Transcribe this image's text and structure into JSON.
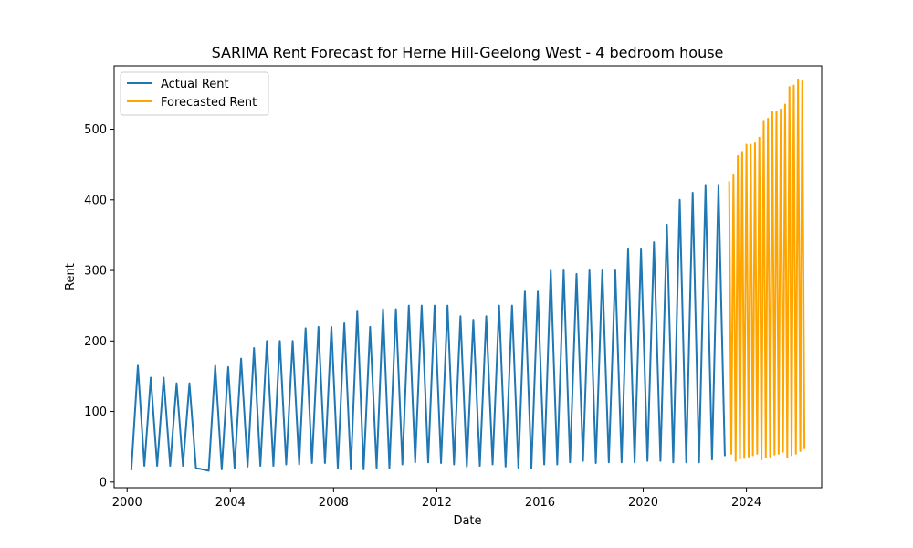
{
  "chart_data": {
    "type": "line",
    "title": "SARIMA Rent Forecast for Herne Hill-Geelong West - 4 bedroom house",
    "xlabel": "Date",
    "ylabel": "Rent",
    "x_axis_type": "date",
    "xlim": [
      "1999-07-01",
      "2026-12-01"
    ],
    "ylim": [
      -8,
      590
    ],
    "x_ticks": [
      {
        "date": "2000-01-01",
        "label": "2000"
      },
      {
        "date": "2004-01-01",
        "label": "2004"
      },
      {
        "date": "2008-01-01",
        "label": "2008"
      },
      {
        "date": "2012-01-01",
        "label": "2012"
      },
      {
        "date": "2016-01-01",
        "label": "2016"
      },
      {
        "date": "2020-01-01",
        "label": "2020"
      },
      {
        "date": "2024-01-01",
        "label": "2024"
      }
    ],
    "y_ticks": [
      0,
      100,
      200,
      300,
      400,
      500
    ],
    "grid": false,
    "legend": {
      "placement": "top-left"
    },
    "series": [
      {
        "name": "Actual Rent",
        "color": "#1f77b4",
        "points": [
          [
            "2000-03-01",
            18
          ],
          [
            "2000-06-01",
            165
          ],
          [
            "2000-09-01",
            23
          ],
          [
            "2000-12-01",
            148
          ],
          [
            "2001-03-01",
            23
          ],
          [
            "2001-06-01",
            148
          ],
          [
            "2001-09-01",
            23
          ],
          [
            "2001-12-01",
            140
          ],
          [
            "2002-03-01",
            23
          ],
          [
            "2002-06-01",
            140
          ],
          [
            "2002-09-01",
            20
          ],
          [
            "2003-03-01",
            16
          ],
          [
            "2003-06-01",
            165
          ],
          [
            "2003-09-01",
            18
          ],
          [
            "2003-12-01",
            163
          ],
          [
            "2004-03-01",
            20
          ],
          [
            "2004-06-01",
            175
          ],
          [
            "2004-09-01",
            22
          ],
          [
            "2004-12-01",
            190
          ],
          [
            "2005-03-01",
            23
          ],
          [
            "2005-06-01",
            200
          ],
          [
            "2005-09-01",
            23
          ],
          [
            "2005-12-01",
            200
          ],
          [
            "2006-03-01",
            25
          ],
          [
            "2006-06-01",
            200
          ],
          [
            "2006-09-01",
            25
          ],
          [
            "2006-12-01",
            218
          ],
          [
            "2007-03-01",
            27
          ],
          [
            "2007-06-01",
            220
          ],
          [
            "2007-09-01",
            27
          ],
          [
            "2007-12-01",
            220
          ],
          [
            "2008-03-01",
            20
          ],
          [
            "2008-06-01",
            225
          ],
          [
            "2008-09-01",
            18
          ],
          [
            "2008-12-01",
            243
          ],
          [
            "2009-03-01",
            18
          ],
          [
            "2009-06-01",
            220
          ],
          [
            "2009-09-01",
            20
          ],
          [
            "2009-12-01",
            245
          ],
          [
            "2010-03-01",
            20
          ],
          [
            "2010-06-01",
            245
          ],
          [
            "2010-09-01",
            25
          ],
          [
            "2010-12-01",
            250
          ],
          [
            "2011-03-01",
            28
          ],
          [
            "2011-06-01",
            250
          ],
          [
            "2011-09-01",
            28
          ],
          [
            "2011-12-01",
            250
          ],
          [
            "2012-03-01",
            27
          ],
          [
            "2012-06-01",
            250
          ],
          [
            "2012-09-01",
            25
          ],
          [
            "2012-12-01",
            235
          ],
          [
            "2013-03-01",
            22
          ],
          [
            "2013-06-01",
            230
          ],
          [
            "2013-09-01",
            23
          ],
          [
            "2013-12-01",
            235
          ],
          [
            "2014-03-01",
            25
          ],
          [
            "2014-06-01",
            250
          ],
          [
            "2014-09-01",
            22
          ],
          [
            "2014-12-01",
            250
          ],
          [
            "2015-03-01",
            20
          ],
          [
            "2015-06-01",
            270
          ],
          [
            "2015-09-01",
            20
          ],
          [
            "2015-12-01",
            270
          ],
          [
            "2016-03-01",
            25
          ],
          [
            "2016-06-01",
            300
          ],
          [
            "2016-09-01",
            25
          ],
          [
            "2016-12-01",
            300
          ],
          [
            "2017-03-01",
            28
          ],
          [
            "2017-06-01",
            295
          ],
          [
            "2017-09-01",
            30
          ],
          [
            "2017-12-01",
            300
          ],
          [
            "2018-03-01",
            27
          ],
          [
            "2018-06-01",
            300
          ],
          [
            "2018-09-01",
            28
          ],
          [
            "2018-12-01",
            300
          ],
          [
            "2019-03-01",
            28
          ],
          [
            "2019-06-01",
            330
          ],
          [
            "2019-09-01",
            28
          ],
          [
            "2019-12-01",
            330
          ],
          [
            "2020-03-01",
            30
          ],
          [
            "2020-06-01",
            340
          ],
          [
            "2020-09-01",
            30
          ],
          [
            "2020-12-01",
            365
          ],
          [
            "2021-03-01",
            28
          ],
          [
            "2021-06-01",
            400
          ],
          [
            "2021-09-01",
            28
          ],
          [
            "2021-12-01",
            410
          ],
          [
            "2022-03-01",
            28
          ],
          [
            "2022-06-01",
            420
          ],
          [
            "2022-09-01",
            32
          ],
          [
            "2022-12-01",
            420
          ],
          [
            "2023-03-01",
            38
          ]
        ]
      },
      {
        "name": "Forecasted Rent",
        "color": "#ffa500",
        "points": [
          [
            "2023-05-01",
            425
          ],
          [
            "2023-06-01",
            40
          ],
          [
            "2023-07-01",
            435
          ],
          [
            "2023-08-01",
            30
          ],
          [
            "2023-09-01",
            462
          ],
          [
            "2023-10-01",
            33
          ],
          [
            "2023-11-01",
            468
          ],
          [
            "2023-12-01",
            34
          ],
          [
            "2024-01-01",
            478
          ],
          [
            "2024-02-01",
            36
          ],
          [
            "2024-03-01",
            478
          ],
          [
            "2024-04-01",
            38
          ],
          [
            "2024-05-01",
            480
          ],
          [
            "2024-06-01",
            40
          ],
          [
            "2024-07-01",
            488
          ],
          [
            "2024-08-01",
            32
          ],
          [
            "2024-09-01",
            512
          ],
          [
            "2024-10-01",
            35
          ],
          [
            "2024-11-01",
            515
          ],
          [
            "2024-12-01",
            36
          ],
          [
            "2025-01-01",
            525
          ],
          [
            "2025-02-01",
            39
          ],
          [
            "2025-03-01",
            525
          ],
          [
            "2025-04-01",
            40
          ],
          [
            "2025-05-01",
            528
          ],
          [
            "2025-06-01",
            43
          ],
          [
            "2025-07-01",
            535
          ],
          [
            "2025-08-01",
            35
          ],
          [
            "2025-09-01",
            560
          ],
          [
            "2025-10-01",
            38
          ],
          [
            "2025-11-01",
            562
          ],
          [
            "2025-12-01",
            40
          ],
          [
            "2026-01-01",
            570
          ],
          [
            "2026-02-01",
            44
          ],
          [
            "2026-03-01",
            568
          ],
          [
            "2026-04-01",
            48
          ]
        ]
      }
    ]
  }
}
